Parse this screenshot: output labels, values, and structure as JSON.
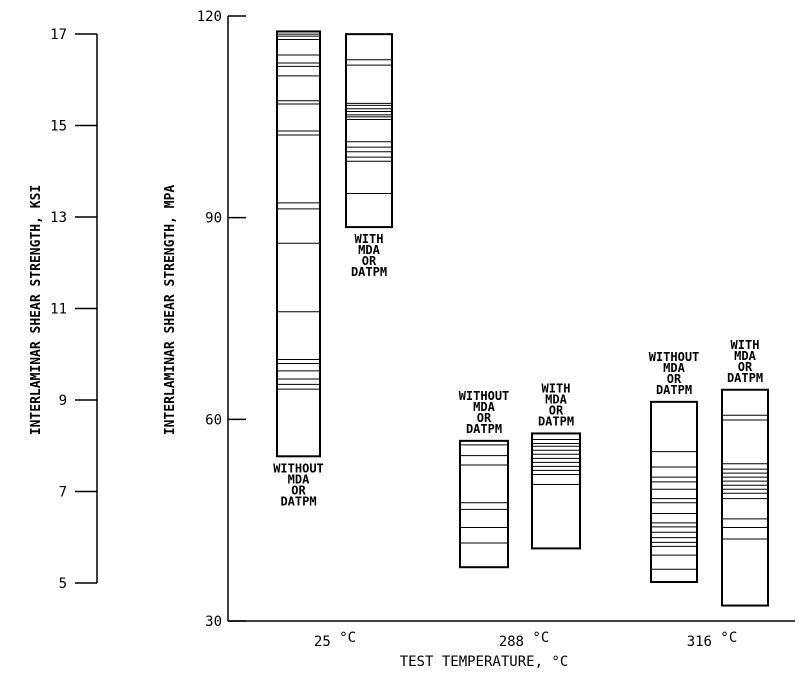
{
  "chart_data": {
    "type": "bar",
    "subtype": "range-bar",
    "xlabel": "TEST TEMPERATURE, °C",
    "ylabel": "INTERLAMINAR SHEAR STRENGTH, MPA",
    "ylabel_secondary": "INTERLAMINAR SHEAR STRENGTH, KSI",
    "ylim": [
      30,
      120
    ],
    "yticks": [
      30,
      60,
      90,
      120
    ],
    "ylim_secondary": [
      4.35,
      17.4
    ],
    "yticks_secondary": [
      5,
      7,
      9,
      11,
      13,
      15,
      17
    ],
    "grid": false,
    "categories": [
      {
        "label": "25",
        "unit": "°C"
      },
      {
        "label": "288",
        "unit": "°C"
      },
      {
        "label": "316",
        "unit": "°C"
      }
    ],
    "bars": [
      {
        "category": "25",
        "label_lines": [
          "WITHOUT",
          "MDA",
          "OR",
          "DATPM"
        ],
        "label_position": "below",
        "min": 54.5,
        "max": 117.7,
        "lines": [
          54.5,
          64.5,
          65.2,
          66.0,
          67.2,
          68.3,
          68.9,
          76.0,
          86.2,
          91.3,
          92.2,
          102.3,
          102.9,
          106.9,
          107.4,
          111.1,
          112.5,
          113.0,
          114.2,
          116.5,
          117.0,
          117.3,
          117.7
        ]
      },
      {
        "category": "25",
        "label_lines": [
          "WITH",
          "MDA",
          "OR",
          "DATPM"
        ],
        "label_position": "below",
        "min": 88.6,
        "max": 117.3,
        "lines": [
          88.6,
          93.6,
          98.4,
          99.0,
          99.8,
          100.5,
          101.3,
          104.6,
          105.0,
          105.3,
          105.8,
          106.2,
          106.7,
          107.0,
          112.7,
          113.5,
          117.3
        ]
      },
      {
        "category": "288",
        "label_lines": [
          "WITHOUT",
          "MDA",
          "OR",
          "DATPM"
        ],
        "label_position": "above",
        "min": 38.0,
        "max": 56.8,
        "lines": [
          38.0,
          41.6,
          43.9,
          46.6,
          47.6,
          53.2,
          54.6,
          56.2,
          56.8
        ]
      },
      {
        "category": "288",
        "label_lines": [
          "WITH",
          "MDA",
          "OR",
          "DATPM"
        ],
        "label_position": "above",
        "min": 40.8,
        "max": 57.9,
        "lines": [
          40.8,
          50.3,
          51.8,
          52.4,
          53.0,
          53.6,
          54.2,
          54.8,
          55.4,
          56.0,
          56.4,
          57.0,
          57.9
        ]
      },
      {
        "category": "316",
        "label_lines": [
          "WITHOUT",
          "MDA",
          "OR",
          "DATPM"
        ],
        "label_position": "above",
        "min": 35.8,
        "max": 62.6,
        "lines": [
          35.8,
          37.7,
          39.8,
          41.1,
          41.7,
          42.4,
          43.2,
          44.0,
          44.6,
          46.0,
          47.6,
          48.2,
          49.6,
          50.7,
          51.4,
          52.9,
          55.2,
          62.6
        ]
      },
      {
        "category": "316",
        "label_lines": [
          "WITH",
          "MDA",
          "OR",
          "DATPM"
        ],
        "label_position": "above",
        "min": 32.3,
        "max": 64.4,
        "lines": [
          32.3,
          42.2,
          43.9,
          45.2,
          48.2,
          49.0,
          49.6,
          50.2,
          50.8,
          51.4,
          52.0,
          52.6,
          53.4,
          59.9,
          60.6,
          64.4
        ]
      }
    ]
  }
}
